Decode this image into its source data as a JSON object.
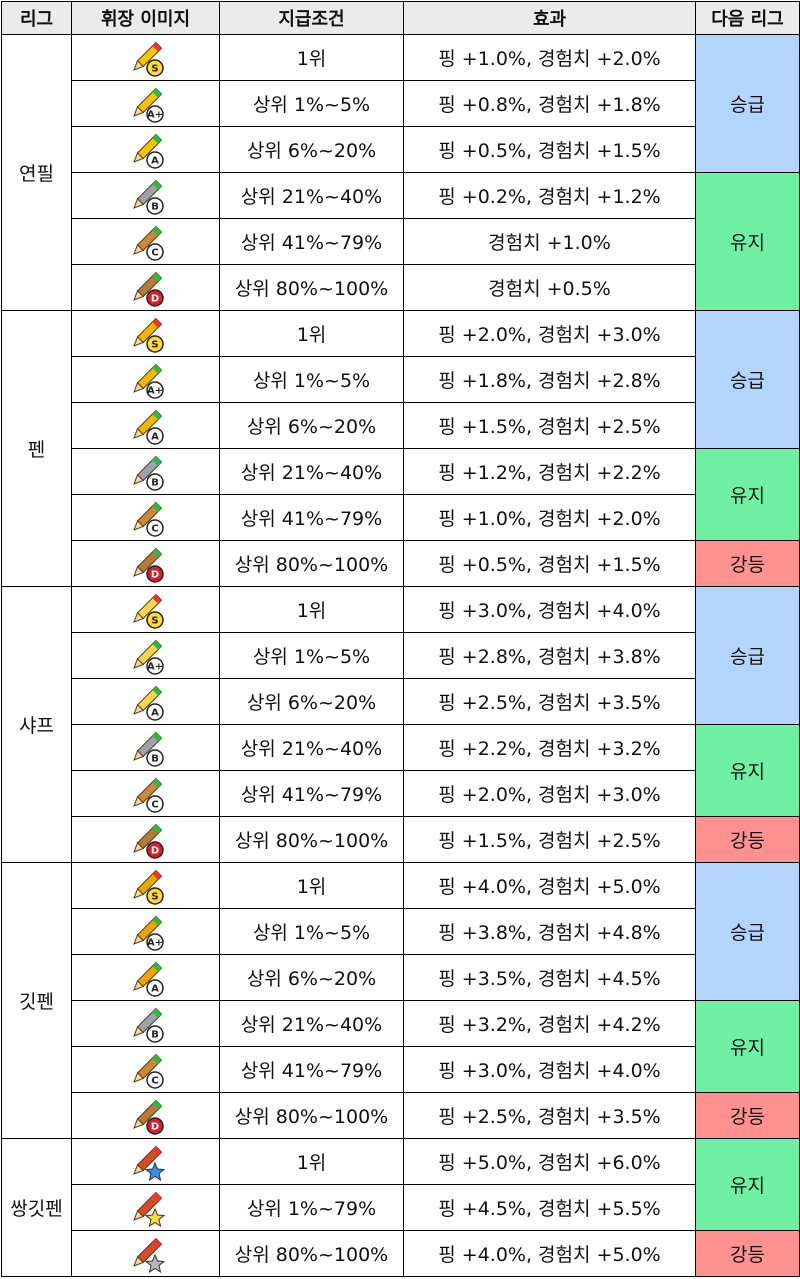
{
  "headers": {
    "league": "리그",
    "badge": "휘장 이미지",
    "condition": "지급조건",
    "effect": "효과",
    "next": "다음 리그"
  },
  "colors": {
    "header_bg": "#ebebeb",
    "next_up": "#b3d4fb",
    "next_keep": "#6ff0a5",
    "next_down": "#ff9191"
  },
  "leagues": [
    {
      "name": "연필",
      "icon": "pencil-icon",
      "rows": [
        {
          "grade": "S",
          "condition": "1위",
          "effect": "핑 +1.0%, 경험치 +2.0%"
        },
        {
          "grade": "A+",
          "condition": "상위 1%~5%",
          "effect": "핑 +0.8%, 경험치 +1.8%"
        },
        {
          "grade": "A",
          "condition": "상위 6%~20%",
          "effect": "핑 +0.5%, 경험치 +1.5%"
        },
        {
          "grade": "B",
          "condition": "상위 21%~40%",
          "effect": "핑 +0.2%, 경험치 +1.2%"
        },
        {
          "grade": "C",
          "condition": "상위 41%~79%",
          "effect": "경험치 +1.0%"
        },
        {
          "grade": "D",
          "condition": "상위 80%~100%",
          "effect": "경험치 +0.5%"
        }
      ],
      "next": [
        {
          "label": "승급",
          "type": "up",
          "span": 3
        },
        {
          "label": "유지",
          "type": "keep",
          "span": 3
        }
      ]
    },
    {
      "name": "펜",
      "icon": "pen-icon",
      "rows": [
        {
          "grade": "S",
          "condition": "1위",
          "effect": "핑 +2.0%, 경험치 +3.0%"
        },
        {
          "grade": "A+",
          "condition": "상위 1%~5%",
          "effect": "핑 +1.8%, 경험치 +2.8%"
        },
        {
          "grade": "A",
          "condition": "상위 6%~20%",
          "effect": "핑 +1.5%, 경험치 +2.5%"
        },
        {
          "grade": "B",
          "condition": "상위 21%~40%",
          "effect": "핑 +1.2%, 경험치 +2.2%"
        },
        {
          "grade": "C",
          "condition": "상위 41%~79%",
          "effect": "핑 +1.0%, 경험치 +2.0%"
        },
        {
          "grade": "D",
          "condition": "상위 80%~100%",
          "effect": "핑 +0.5%, 경험치 +1.5%"
        }
      ],
      "next": [
        {
          "label": "승급",
          "type": "up",
          "span": 3
        },
        {
          "label": "유지",
          "type": "keep",
          "span": 2
        },
        {
          "label": "강등",
          "type": "down",
          "span": 1
        }
      ]
    },
    {
      "name": "샤프",
      "icon": "mechanical-pencil-icon",
      "rows": [
        {
          "grade": "S",
          "condition": "1위",
          "effect": "핑 +3.0%, 경험치 +4.0%"
        },
        {
          "grade": "A+",
          "condition": "상위 1%~5%",
          "effect": "핑 +2.8%, 경험치 +3.8%"
        },
        {
          "grade": "A",
          "condition": "상위 6%~20%",
          "effect": "핑 +2.5%, 경험치 +3.5%"
        },
        {
          "grade": "B",
          "condition": "상위 21%~40%",
          "effect": "핑 +2.2%, 경험치 +3.2%"
        },
        {
          "grade": "C",
          "condition": "상위 41%~79%",
          "effect": "핑 +2.0%, 경험치 +3.0%"
        },
        {
          "grade": "D",
          "condition": "상위 80%~100%",
          "effect": "핑 +1.5%, 경험치 +2.5%"
        }
      ],
      "next": [
        {
          "label": "승급",
          "type": "up",
          "span": 3
        },
        {
          "label": "유지",
          "type": "keep",
          "span": 2
        },
        {
          "label": "강등",
          "type": "down",
          "span": 1
        }
      ]
    },
    {
      "name": "깃펜",
      "icon": "quill-pen-icon",
      "rows": [
        {
          "grade": "S",
          "condition": "1위",
          "effect": "핑 +4.0%, 경험치 +5.0%"
        },
        {
          "grade": "A+",
          "condition": "상위 1%~5%",
          "effect": "핑 +3.8%, 경험치 +4.8%"
        },
        {
          "grade": "A",
          "condition": "상위 6%~20%",
          "effect": "핑 +3.5%, 경험치 +4.5%"
        },
        {
          "grade": "B",
          "condition": "상위 21%~40%",
          "effect": "핑 +3.2%, 경험치 +4.2%"
        },
        {
          "grade": "C",
          "condition": "상위 41%~79%",
          "effect": "핑 +3.0%, 경험치 +4.0%"
        },
        {
          "grade": "D",
          "condition": "상위 80%~100%",
          "effect": "핑 +2.5%, 경험치 +3.5%"
        }
      ],
      "next": [
        {
          "label": "승급",
          "type": "up",
          "span": 3
        },
        {
          "label": "유지",
          "type": "keep",
          "span": 2
        },
        {
          "label": "강등",
          "type": "down",
          "span": 1
        }
      ]
    },
    {
      "name": "쌍깃펜",
      "icon": "double-quill-icon",
      "rows": [
        {
          "grade": "star-gold",
          "condition": "1위",
          "effect": "핑 +5.0%, 경험치 +6.0%"
        },
        {
          "grade": "star-yellow",
          "condition": "상위 1%~79%",
          "effect": "핑 +4.5%, 경험치 +5.5%"
        },
        {
          "grade": "star-gray",
          "condition": "상위 80%~100%",
          "effect": "핑 +4.0%, 경험치 +5.0%"
        }
      ],
      "next": [
        {
          "label": "유지",
          "type": "keep",
          "span": 2
        },
        {
          "label": "강등",
          "type": "down",
          "span": 1
        }
      ]
    }
  ]
}
